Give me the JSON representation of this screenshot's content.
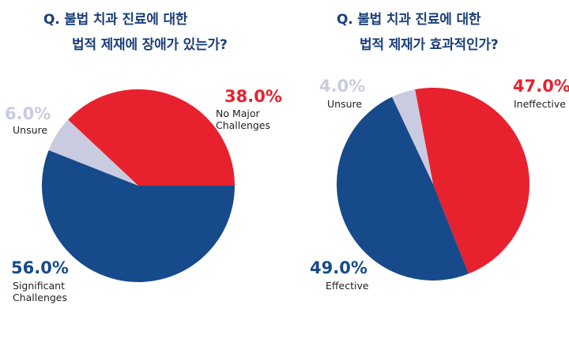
{
  "colors": {
    "ineffective_red": "#e8212f",
    "effective_blue": "#164a8a",
    "unsure_gray": "#c9cbe0",
    "title_blue": "#1b3f7a"
  },
  "chart_data": [
    {
      "type": "pie",
      "title_lines": [
        "Q. 불법 치과 진료에 대한",
        "법적 제재에 장애가 있는가?"
      ],
      "slices": [
        {
          "value": 38.0,
          "pct_label": "38.0%",
          "label_lines": [
            "No Major",
            "Challenges"
          ],
          "color": "#e8212f"
        },
        {
          "value": 56.0,
          "pct_label": "56.0%",
          "label_lines": [
            "Significant",
            "Challenges"
          ],
          "color": "#164a8a"
        },
        {
          "value": 6.0,
          "pct_label": "6.0%",
          "label_lines": [
            "Unsure"
          ],
          "color": "#c9cbe0"
        }
      ]
    },
    {
      "type": "pie",
      "title_lines": [
        "Q. 불법 치과 진료에 대한",
        "법적 제재가 효과적인가?"
      ],
      "slices": [
        {
          "value": 47.0,
          "pct_label": "47.0%",
          "label_lines": [
            "Ineffective"
          ],
          "color": "#e8212f"
        },
        {
          "value": 49.0,
          "pct_label": "49.0%",
          "label_lines": [
            "Effective"
          ],
          "color": "#164a8a"
        },
        {
          "value": 4.0,
          "pct_label": "4.0%",
          "label_lines": [
            "Unsure"
          ],
          "color": "#c9cbe0"
        }
      ]
    }
  ]
}
